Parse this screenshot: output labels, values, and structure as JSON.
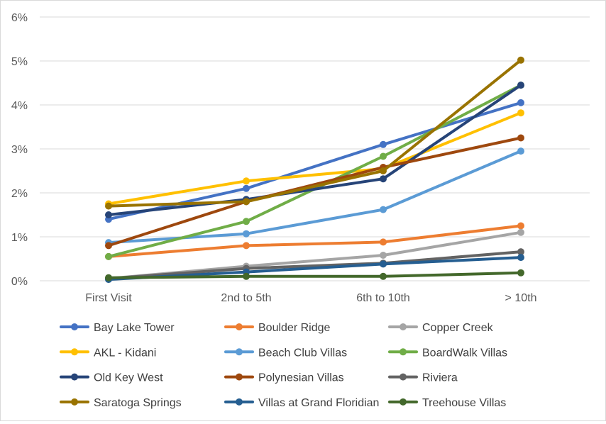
{
  "chart_data": {
    "type": "line",
    "categories": [
      "First Visit",
      "2nd to 5th",
      "6th to 10th",
      "> 10th"
    ],
    "ylim": [
      0,
      6
    ],
    "yticks": [
      "0%",
      "1%",
      "2%",
      "3%",
      "4%",
      "5%",
      "6%"
    ],
    "y_unit": "%",
    "grid": true,
    "legend_position": "bottom",
    "series": [
      {
        "name": "Bay Lake Tower",
        "color": "#4472C4",
        "values": [
          1.4,
          2.1,
          3.1,
          4.05
        ]
      },
      {
        "name": "Boulder Ridge",
        "color": "#ED7D31",
        "values": [
          0.55,
          0.8,
          0.88,
          1.25
        ]
      },
      {
        "name": "Copper Creek",
        "color": "#A5A5A5",
        "values": [
          0.05,
          0.33,
          0.58,
          1.1
        ]
      },
      {
        "name": "AKL - Kidani",
        "color": "#FFC000",
        "values": [
          1.75,
          2.27,
          2.55,
          3.82
        ]
      },
      {
        "name": "Beach Club Villas",
        "color": "#5B9BD5",
        "values": [
          0.87,
          1.07,
          1.62,
          2.95
        ]
      },
      {
        "name": "BoardWalk Villas",
        "color": "#70AD47",
        "values": [
          0.55,
          1.35,
          2.83,
          4.45
        ]
      },
      {
        "name": "Old Key West",
        "color": "#264478",
        "values": [
          1.5,
          1.85,
          2.32,
          4.45
        ]
      },
      {
        "name": "Polynesian Villas",
        "color": "#9E480E",
        "values": [
          0.8,
          1.8,
          2.58,
          3.25
        ]
      },
      {
        "name": "Riviera",
        "color": "#636363",
        "values": [
          0.05,
          0.28,
          0.4,
          0.66
        ]
      },
      {
        "name": "Saratoga Springs",
        "color": "#997300",
        "values": [
          1.7,
          1.8,
          2.5,
          5.02
        ]
      },
      {
        "name": "Villas at Grand Floridian",
        "color": "#255E91",
        "values": [
          0.03,
          0.2,
          0.38,
          0.53
        ]
      },
      {
        "name": "Treehouse Villas",
        "color": "#43682B",
        "values": [
          0.07,
          0.1,
          0.1,
          0.18
        ]
      }
    ]
  }
}
